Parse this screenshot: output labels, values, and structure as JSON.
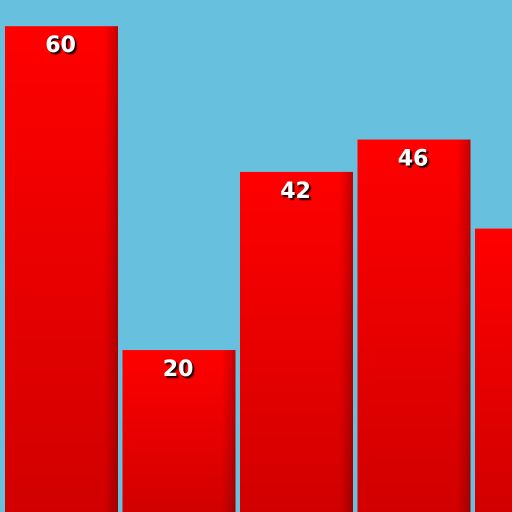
{
  "chart_data": {
    "type": "bar",
    "categories": [
      "",
      "",
      "",
      "",
      ""
    ],
    "values": [
      60,
      20,
      42,
      46,
      35
    ],
    "data_labels": [
      "60",
      "20",
      "42",
      "46",
      ""
    ],
    "ylim": [
      0,
      62
    ],
    "grid": false,
    "colors": {
      "background": "#66c0de",
      "bar": "#ff0000",
      "bar_shadow": "#b00000",
      "label": "#ffffff"
    }
  }
}
